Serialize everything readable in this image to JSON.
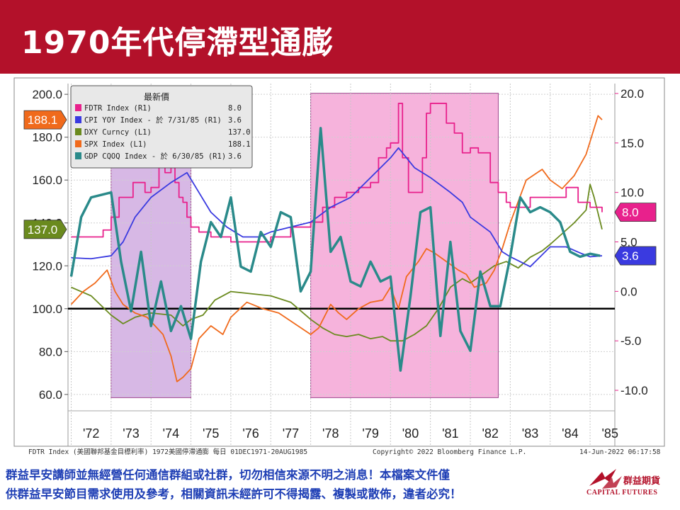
{
  "title": "1970年代停滯型通膨",
  "disclaimer": {
    "line1": "群益早安講師並無經營任何通信群組或社群，切勿相信來源不明之消息！本檔案文件僅",
    "line2": "供群益早安節目需求使用及參考，相關資訊未經許可不得揭露、複製或散佈，違者必究！"
  },
  "logo": {
    "name_cn": "群益期貨",
    "name_en": "CAPITAL FUTURES"
  },
  "colors": {
    "title_bg": "#b3112a",
    "fdtr": "#e8218c",
    "cpi": "#3a3ae0",
    "dxy": "#6a8a1e",
    "spx": "#f06a1c",
    "gdp": "#2a8a8a",
    "shade_purple": "#c9a0dc",
    "shade_pink": "#f39ad0"
  },
  "chart_data": {
    "type": "line",
    "x_tick_labels": [
      "'72",
      "'73",
      "'74",
      "'75",
      "'76",
      "'77",
      "'78",
      "'79",
      "'80",
      "'81",
      "'82",
      "'83",
      "'84",
      "'85"
    ],
    "left_axis": {
      "ticks": [
        "60.0",
        "80.0",
        "100.0",
        "120.0",
        "140.0",
        "160.0",
        "180.0",
        "200.0"
      ],
      "range": [
        55,
        205
      ]
    },
    "right_axis": {
      "ticks": [
        "-10.0",
        "-5.0",
        "0.0",
        "5.0",
        "10.0",
        "15.0",
        "20.0"
      ],
      "range": [
        -11.5,
        21.0
      ]
    },
    "legend": {
      "header": "最新價",
      "entries": [
        {
          "label": "FDTR Index  (R1)",
          "value": "8.0"
        },
        {
          "label": "CPI YOY Index -  於 7/31/85  (R1)",
          "value": "3.6"
        },
        {
          "label": "DXY Curncy  (L1)",
          "value": "137.0"
        },
        {
          "label": "SPX Index  (L1)",
          "value": "188.1"
        },
        {
          "label": "GDP CQOQ Index -  於 6/30/85  (R1)",
          "value": "3.6"
        }
      ]
    },
    "last_value_tags": {
      "spx": "188.1",
      "dxy": "137.0",
      "fdtr": "8.0",
      "cpi": "3.6"
    },
    "shaded_periods": [
      {
        "from": 1973.0,
        "to": 1975.0
      },
      {
        "from": 1978.0,
        "to": 1982.7
      }
    ],
    "baseline_left": 100,
    "series": [
      {
        "key": "fdtr",
        "name": "FDTR Index",
        "axis": "right",
        "x": [
          1972.0,
          1972.5,
          1972.8,
          1973.0,
          1973.2,
          1973.4,
          1973.55,
          1973.7,
          1973.85,
          1974.0,
          1974.2,
          1974.35,
          1974.5,
          1974.6,
          1974.7,
          1974.8,
          1974.9,
          1975.0,
          1975.2,
          1975.5,
          1976.0,
          1976.5,
          1977.0,
          1977.5,
          1978.0,
          1978.3,
          1978.6,
          1978.9,
          1979.2,
          1979.5,
          1979.7,
          1979.9,
          1980.0,
          1980.2,
          1980.3,
          1980.45,
          1980.6,
          1980.8,
          1980.9,
          1981.0,
          1981.2,
          1981.4,
          1981.6,
          1981.8,
          1982.0,
          1982.2,
          1982.5,
          1982.7,
          1982.9,
          1983.0,
          1983.5,
          1984.0,
          1984.4,
          1984.7,
          1985.0,
          1985.3
        ],
        "y": [
          5.5,
          5.5,
          6.2,
          7.5,
          9.5,
          9.5,
          11.0,
          11.0,
          10.0,
          10.5,
          13.0,
          12.0,
          12.5,
          11.0,
          9.5,
          9.0,
          7.5,
          6.5,
          6.0,
          5.5,
          5.0,
          5.0,
          5.5,
          6.5,
          7.0,
          8.5,
          9.5,
          10.0,
          10.5,
          11.0,
          13.5,
          14.5,
          15.0,
          19.0,
          13.5,
          10.0,
          10.0,
          13.5,
          18.0,
          19.0,
          19.0,
          17.0,
          16.0,
          14.0,
          14.5,
          14.0,
          11.0,
          10.0,
          9.0,
          8.5,
          9.5,
          9.5,
          10.5,
          9.0,
          8.5,
          8.0
        ]
      },
      {
        "key": "cpi",
        "name": "CPI YOY Index",
        "axis": "right",
        "x": [
          1972.0,
          1972.5,
          1973.0,
          1973.3,
          1973.6,
          1974.0,
          1974.5,
          1974.9,
          1975.2,
          1975.5,
          1975.9,
          1976.3,
          1976.7,
          1977.0,
          1977.5,
          1978.0,
          1978.5,
          1979.0,
          1979.5,
          1980.0,
          1980.2,
          1980.6,
          1981.0,
          1981.5,
          1981.8,
          1982.0,
          1982.5,
          1982.8,
          1983.0,
          1983.5,
          1984.0,
          1984.4,
          1984.8,
          1985.0,
          1985.3
        ],
        "y": [
          3.4,
          3.3,
          3.6,
          5.0,
          7.5,
          9.5,
          11.0,
          12.0,
          10.0,
          8.0,
          6.5,
          5.5,
          5.5,
          6.0,
          6.5,
          7.0,
          8.5,
          9.5,
          11.5,
          13.5,
          14.5,
          12.5,
          11.5,
          10.0,
          9.0,
          7.5,
          6.0,
          4.0,
          3.5,
          2.5,
          4.5,
          4.5,
          3.8,
          3.5,
          3.6
        ]
      },
      {
        "key": "dxy",
        "name": "DXY Curncy",
        "axis": "left",
        "x": [
          1972.0,
          1972.5,
          1973.0,
          1973.3,
          1973.6,
          1974.0,
          1974.5,
          1974.8,
          1975.0,
          1975.3,
          1975.6,
          1976.0,
          1976.5,
          1977.0,
          1977.5,
          1978.0,
          1978.3,
          1978.6,
          1978.9,
          1979.2,
          1979.5,
          1979.8,
          1980.0,
          1980.3,
          1980.6,
          1980.9,
          1981.2,
          1981.5,
          1981.8,
          1982.0,
          1982.3,
          1982.6,
          1982.9,
          1983.2,
          1983.5,
          1983.8,
          1984.0,
          1984.3,
          1984.6,
          1984.9,
          1985.0,
          1985.1,
          1985.3
        ],
        "y": [
          110,
          106,
          97,
          93,
          96,
          98,
          97,
          92,
          95,
          97,
          104,
          108,
          107,
          106,
          103,
          95,
          91,
          88,
          87,
          88,
          86,
          87,
          85,
          85,
          88,
          92,
          100,
          110,
          114,
          112,
          116,
          120,
          122,
          119,
          124,
          127,
          130,
          135,
          140,
          146,
          158,
          152,
          137
        ]
      },
      {
        "key": "spx",
        "name": "SPX Index",
        "axis": "left",
        "x": [
          1972.0,
          1972.3,
          1972.6,
          1972.9,
          1973.1,
          1973.3,
          1973.6,
          1973.9,
          1974.1,
          1974.3,
          1974.5,
          1974.65,
          1974.8,
          1975.0,
          1975.2,
          1975.5,
          1975.8,
          1976.0,
          1976.4,
          1976.8,
          1977.2,
          1977.6,
          1978.0,
          1978.2,
          1978.5,
          1978.7,
          1978.9,
          1979.2,
          1979.5,
          1979.8,
          1980.0,
          1980.2,
          1980.4,
          1980.7,
          1980.9,
          1981.1,
          1981.4,
          1981.7,
          1981.9,
          1982.1,
          1982.4,
          1982.6,
          1982.8,
          1983.0,
          1983.4,
          1983.8,
          1984.0,
          1984.3,
          1984.6,
          1984.9,
          1985.0,
          1985.2,
          1985.3
        ],
        "y": [
          102,
          108,
          112,
          118,
          108,
          102,
          98,
          96,
          92,
          88,
          78,
          66,
          68,
          72,
          86,
          92,
          88,
          96,
          103,
          100,
          98,
          93,
          88,
          91,
          102,
          98,
          95,
          100,
          103,
          104,
          110,
          100,
          115,
          122,
          128,
          126,
          122,
          118,
          116,
          110,
          112,
          118,
          128,
          140,
          160,
          165,
          160,
          156,
          162,
          172,
          178,
          190,
          188.1
        ]
      },
      {
        "key": "gdp",
        "name": "GDP CQOQ Index",
        "axis": "right",
        "x": [
          1972.0,
          1972.25,
          1972.5,
          1973.0,
          1973.25,
          1973.5,
          1973.75,
          1974.0,
          1974.25,
          1974.5,
          1974.75,
          1975.0,
          1975.25,
          1975.5,
          1975.75,
          1976.0,
          1976.25,
          1976.5,
          1976.75,
          1977.0,
          1977.25,
          1977.5,
          1977.75,
          1978.0,
          1978.25,
          1978.5,
          1978.75,
          1979.0,
          1979.25,
          1979.5,
          1979.75,
          1980.0,
          1980.25,
          1980.5,
          1980.75,
          1981.0,
          1981.25,
          1981.5,
          1981.75,
          1982.0,
          1982.25,
          1982.5,
          1982.75,
          1983.0,
          1983.25,
          1983.5,
          1983.75,
          1984.0,
          1984.25,
          1984.5,
          1984.75,
          1985.0,
          1985.25
        ],
        "y": [
          1.5,
          7.5,
          9.5,
          10.0,
          3.0,
          -2.0,
          4.0,
          -3.5,
          1.0,
          -4.0,
          -1.5,
          -4.8,
          3.0,
          7.0,
          5.5,
          9.5,
          2.5,
          2.0,
          6.0,
          4.5,
          8.0,
          7.5,
          0.0,
          2.0,
          16.5,
          4.0,
          5.5,
          1.0,
          0.5,
          3.0,
          1.0,
          1.5,
          -8.0,
          -0.5,
          8.0,
          8.5,
          -4.5,
          5.0,
          -4.0,
          -6.0,
          2.0,
          -1.5,
          -1.5,
          3.5,
          9.5,
          8.0,
          8.5,
          8.0,
          7.0,
          4.0,
          3.5,
          3.8,
          3.6
        ]
      }
    ],
    "footer_left": "FDTR Index (美國聯邦基金目標利率) 1972美國停滯通膨   每日 01DEC1971-20AUG1985",
    "footer_mid": "Copyright© 2022 Bloomberg Finance L.P.",
    "footer_right": "14-Jun-2022 06:17:58"
  }
}
